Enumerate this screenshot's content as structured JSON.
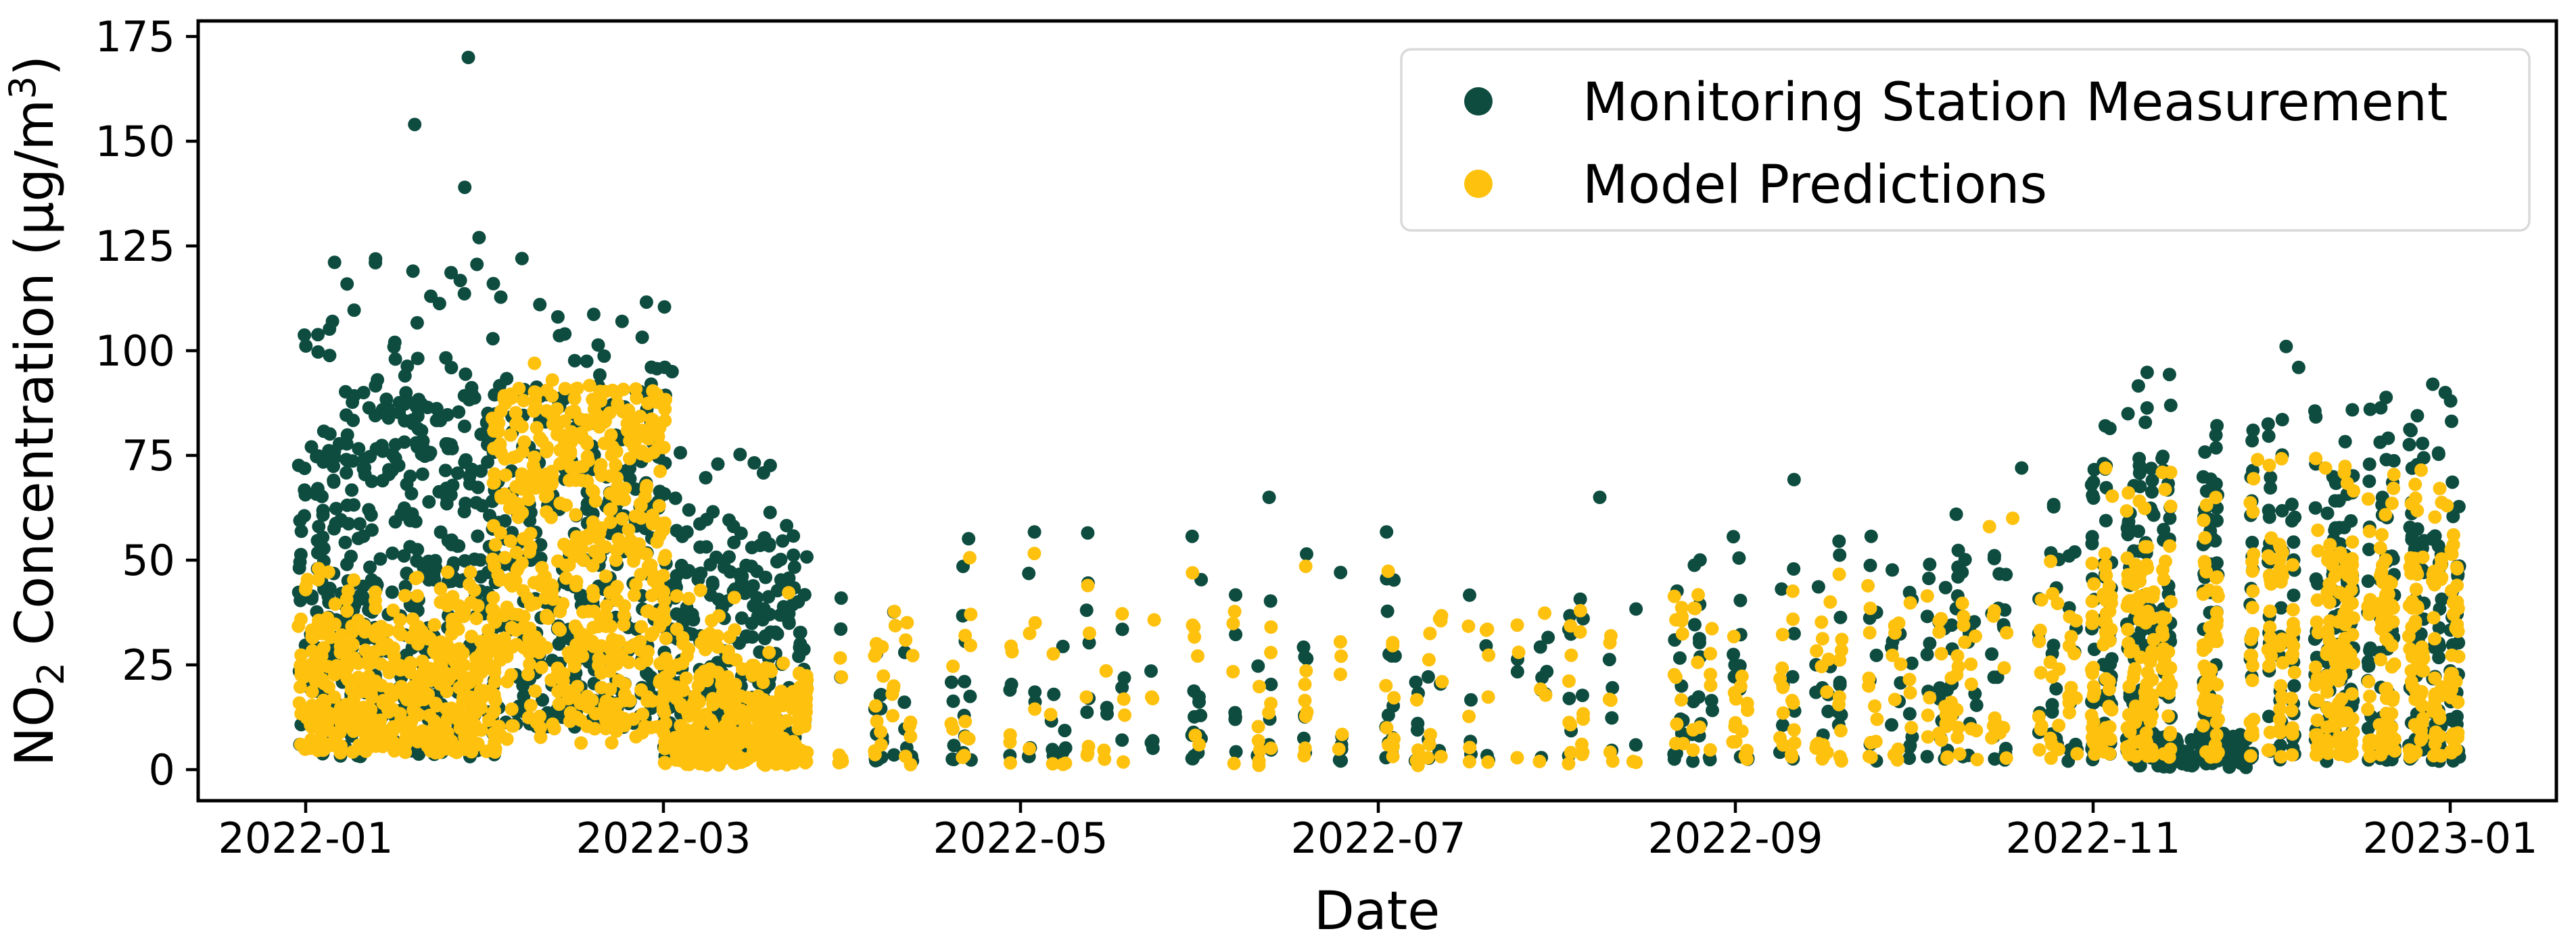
{
  "chart_data": {
    "type": "scatter",
    "title": "",
    "xlabel": "Date",
    "ylabel": "NO₂ Concentration (μg/m³)",
    "ylabel_parts": {
      "pre": "NO",
      "sub": "2",
      "mid": " Concentration (μg/m",
      "sup": "3",
      "post": ")"
    },
    "x_unit": "months_since_2022-01-01",
    "x_tick_labels": [
      "2022-01",
      "2022-03",
      "2022-05",
      "2022-07",
      "2022-09",
      "2022-11",
      "2023-01"
    ],
    "y_tick_labels": [
      "0",
      "25",
      "50",
      "75",
      "100",
      "125",
      "150",
      "175"
    ],
    "y_tick_values": [
      0,
      25,
      50,
      75,
      100,
      125,
      150,
      175
    ],
    "ylim": [
      -8,
      179
    ],
    "xlim_months": [
      -0.6,
      12.6
    ],
    "grid": false,
    "legend_location": "upper right",
    "legend_border_color": "#d9d9d9",
    "axis_color": "#000000",
    "background_color": "#ffffff",
    "marker_diameter_px": 20,
    "seed": 1337,
    "series": [
      {
        "name": "Monitoring Station Measurement",
        "color": "#0e4c40",
        "summary": "Dense 10-90 in Jan-Feb with spikes to 170; 3-75 in Mar; sparse daily columns 2-60 Apr-Jul; columns 2-72 Aug-Oct; dense 0-100 Nov-Dec incl. near-zero blob mid-Nov",
        "clusters": [
          {
            "m0": -0.03,
            "m1": 1.05,
            "day_p": 1.0,
            "per_day": [
              7,
              17
            ],
            "y": [
              12,
              90
            ],
            "pow": 1.2
          },
          {
            "m0": 0.0,
            "m1": 1.1,
            "day_p": 0.5,
            "per_day": [
              1,
              3
            ],
            "y": [
              88,
              124
            ],
            "pow": 1.4
          },
          {
            "m0": -0.03,
            "m1": 1.05,
            "day_p": 0.8,
            "per_day": [
              1,
              3
            ],
            "y": [
              3,
              14
            ],
            "pow": 1.0
          },
          {
            "m0": 1.05,
            "m1": 2.0,
            "day_p": 1.0,
            "per_day": [
              8,
              16
            ],
            "y": [
              10,
              92
            ],
            "pow": 1.25
          },
          {
            "m0": 1.1,
            "m1": 2.0,
            "day_p": 0.35,
            "per_day": [
              1,
              2
            ],
            "y": [
              92,
              118
            ],
            "pow": 1.5
          },
          {
            "m0": 2.0,
            "m1": 2.8,
            "day_p": 1.0,
            "per_day": [
              7,
              15
            ],
            "y": [
              3,
              56
            ],
            "pow": 1.35
          },
          {
            "m0": 2.0,
            "m1": 2.7,
            "day_p": 0.4,
            "per_day": [
              1,
              2
            ],
            "y": [
              56,
              76
            ],
            "pow": 1.3
          },
          {
            "m0": 2.8,
            "m1": 7.55,
            "day_p": 0.3,
            "per_day": [
              2,
              7
            ],
            "y": [
              2,
              48
            ],
            "pow": 1.55
          },
          {
            "m0": 2.8,
            "m1": 7.55,
            "day_p": 0.05,
            "per_day": [
              1,
              1
            ],
            "y": [
              48,
              60
            ],
            "pow": 1.2
          },
          {
            "m0": 7.55,
            "m1": 10.0,
            "day_p": 0.45,
            "per_day": [
              3,
              8
            ],
            "y": [
              2,
              52
            ],
            "pow": 1.45
          },
          {
            "m0": 7.55,
            "m1": 10.0,
            "day_p": 0.12,
            "per_day": [
              1,
              2
            ],
            "y": [
              52,
              72
            ],
            "pow": 1.3
          },
          {
            "m0": 10.0,
            "m1": 12.05,
            "day_p": 0.65,
            "per_day": [
              12,
              22
            ],
            "y": [
              2,
              72
            ],
            "pow": 1.4
          },
          {
            "m0": 10.0,
            "m1": 12.05,
            "day_p": 0.45,
            "per_day": [
              1,
              3
            ],
            "y": [
              72,
              95
            ],
            "pow": 1.4
          },
          {
            "m0": 10.25,
            "m1": 10.85,
            "day_p": 1.0,
            "per_day": [
              3,
              7
            ],
            "y": [
              0.5,
              9
            ],
            "pow": 1.2
          }
        ],
        "outliers": [
          [
            0.15,
            107
          ],
          [
            0.39,
            121
          ],
          [
            0.6,
            119
          ],
          [
            0.61,
            154
          ],
          [
            0.7,
            113
          ],
          [
            0.89,
            139
          ],
          [
            0.91,
            170
          ],
          [
            0.97,
            127
          ],
          [
            1.05,
            116
          ],
          [
            1.21,
            122
          ],
          [
            1.31,
            111
          ],
          [
            1.45,
            104
          ],
          [
            1.77,
            107
          ],
          [
            2.05,
            95
          ],
          [
            5.39,
            65
          ],
          [
            7.24,
            65
          ],
          [
            9.6,
            72
          ],
          [
            11.08,
            101
          ],
          [
            11.15,
            96
          ],
          [
            11.55,
            86
          ],
          [
            11.9,
            92
          ],
          [
            11.97,
            90
          ],
          [
            12.0,
            88
          ]
        ]
      },
      {
        "name": "Model Predictions",
        "color": "#fec10e",
        "summary": "Dense band 4-45 in Jan; elevated cluster 26-97 in Feb; low 1-44 in Mar; sparse daily columns 1-52 Apr-Jul; columns 2-62 Aug-Oct; dense 3-75 Nov-Dec",
        "clusters": [
          {
            "m0": -0.03,
            "m1": 1.05,
            "day_p": 1.0,
            "per_day": [
              8,
              16
            ],
            "y": [
              4,
              36
            ],
            "pow": 1.2
          },
          {
            "m0": 0.0,
            "m1": 1.05,
            "day_p": 0.5,
            "per_day": [
              1,
              3
            ],
            "y": [
              36,
              48
            ],
            "pow": 1.3
          },
          {
            "m0": 1.05,
            "m1": 2.0,
            "day_p": 1.0,
            "per_day": [
              9,
              17
            ],
            "y": [
              26,
              92
            ],
            "pow": 1.0
          },
          {
            "m0": 1.05,
            "m1": 2.0,
            "day_p": 0.9,
            "per_day": [
              2,
              5
            ],
            "y": [
              6,
              26
            ],
            "pow": 1.1
          },
          {
            "m0": 2.0,
            "m1": 2.8,
            "day_p": 1.0,
            "per_day": [
              8,
              16
            ],
            "y": [
              1,
              24
            ],
            "pow": 1.25
          },
          {
            "m0": 2.0,
            "m1": 2.7,
            "day_p": 0.5,
            "per_day": [
              1,
              3
            ],
            "y": [
              24,
              44
            ],
            "pow": 1.4
          },
          {
            "m0": 2.8,
            "m1": 7.55,
            "day_p": 0.3,
            "per_day": [
              2,
              7
            ],
            "y": [
              1,
              38
            ],
            "pow": 1.5
          },
          {
            "m0": 2.8,
            "m1": 7.55,
            "day_p": 0.04,
            "per_day": [
              1,
              1
            ],
            "y": [
              38,
              52
            ],
            "pow": 1.2
          },
          {
            "m0": 7.55,
            "m1": 10.0,
            "day_p": 0.45,
            "per_day": [
              3,
              8
            ],
            "y": [
              2,
              42
            ],
            "pow": 1.35
          },
          {
            "m0": 7.55,
            "m1": 10.0,
            "day_p": 0.1,
            "per_day": [
              1,
              2
            ],
            "y": [
              42,
              62
            ],
            "pow": 1.3
          },
          {
            "m0": 10.0,
            "m1": 12.05,
            "day_p": 0.65,
            "per_day": [
              12,
              22
            ],
            "y": [
              3,
              52
            ],
            "pow": 1.25
          },
          {
            "m0": 10.0,
            "m1": 12.05,
            "day_p": 0.5,
            "per_day": [
              1,
              3
            ],
            "y": [
              52,
              75
            ],
            "pow": 1.4
          }
        ],
        "outliers": [
          [
            1.28,
            97
          ],
          [
            1.38,
            93
          ],
          [
            1.52,
            91
          ],
          [
            1.65,
            88
          ],
          [
            9.42,
            58
          ],
          [
            9.55,
            60
          ],
          [
            10.92,
            74
          ],
          [
            11.3,
            72
          ],
          [
            11.98,
            63
          ]
        ]
      }
    ]
  }
}
